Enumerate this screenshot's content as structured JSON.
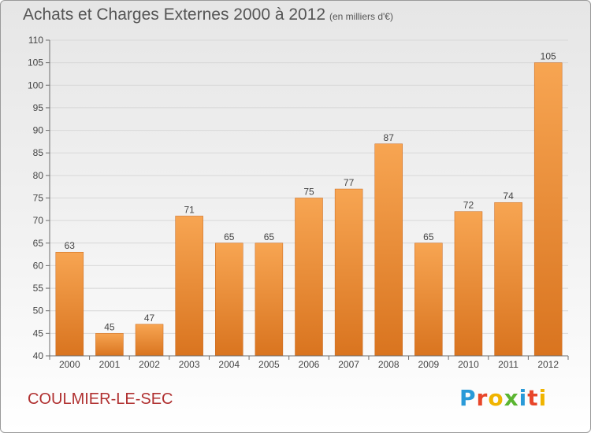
{
  "title": "Achats et Charges Externes 2000 à 2012",
  "subtitle": "(en milliers d'€)",
  "commune": "COULMIER-LE-SEC",
  "logo": {
    "text": "Proxiti",
    "letters": [
      {
        "ch": "P",
        "color": "#2a9ad8"
      },
      {
        "ch": "r",
        "color": "#e8462a"
      },
      {
        "ch": "o",
        "color": "#f0b400"
      },
      {
        "ch": "x",
        "color": "#5bb531"
      },
      {
        "ch": "i",
        "color": "#2a9ad8"
      },
      {
        "ch": "t",
        "color": "#e8462a"
      },
      {
        "ch": "i",
        "color": "#f0b400"
      }
    ]
  },
  "colors": {
    "bar_top": "#f7a552",
    "bar_bottom": "#d9741f",
    "bar_edge": "#c8661a",
    "axis": "#6e6e6e",
    "grid": "#d8d8d8",
    "text": "#444444"
  },
  "chart_data": {
    "type": "bar",
    "title": "Achats et Charges Externes 2000 à 2012",
    "subtitle": "(en milliers d'€)",
    "categories": [
      "2000",
      "2001",
      "2002",
      "2003",
      "2004",
      "2005",
      "2006",
      "2007",
      "2008",
      "2009",
      "2010",
      "2011",
      "2012"
    ],
    "values": [
      63,
      45,
      47,
      71,
      65,
      65,
      75,
      77,
      87,
      65,
      72,
      74,
      105
    ],
    "data_labels": [
      "63",
      "45",
      "47",
      "71",
      "65",
      "65",
      "75",
      "77",
      "87",
      "65",
      "72",
      "74",
      "105"
    ],
    "ylim": [
      40,
      110
    ],
    "yticks": [
      40,
      45,
      50,
      55,
      60,
      65,
      70,
      75,
      80,
      85,
      90,
      95,
      100,
      105,
      110
    ],
    "ytick_labels": [
      "40",
      "45",
      "50",
      "55",
      "60",
      "65",
      "70",
      "75",
      "80",
      "85",
      "90",
      "95",
      "100",
      "105",
      "110"
    ],
    "xlabel": "",
    "ylabel": "",
    "grid": true,
    "legend": "none"
  }
}
